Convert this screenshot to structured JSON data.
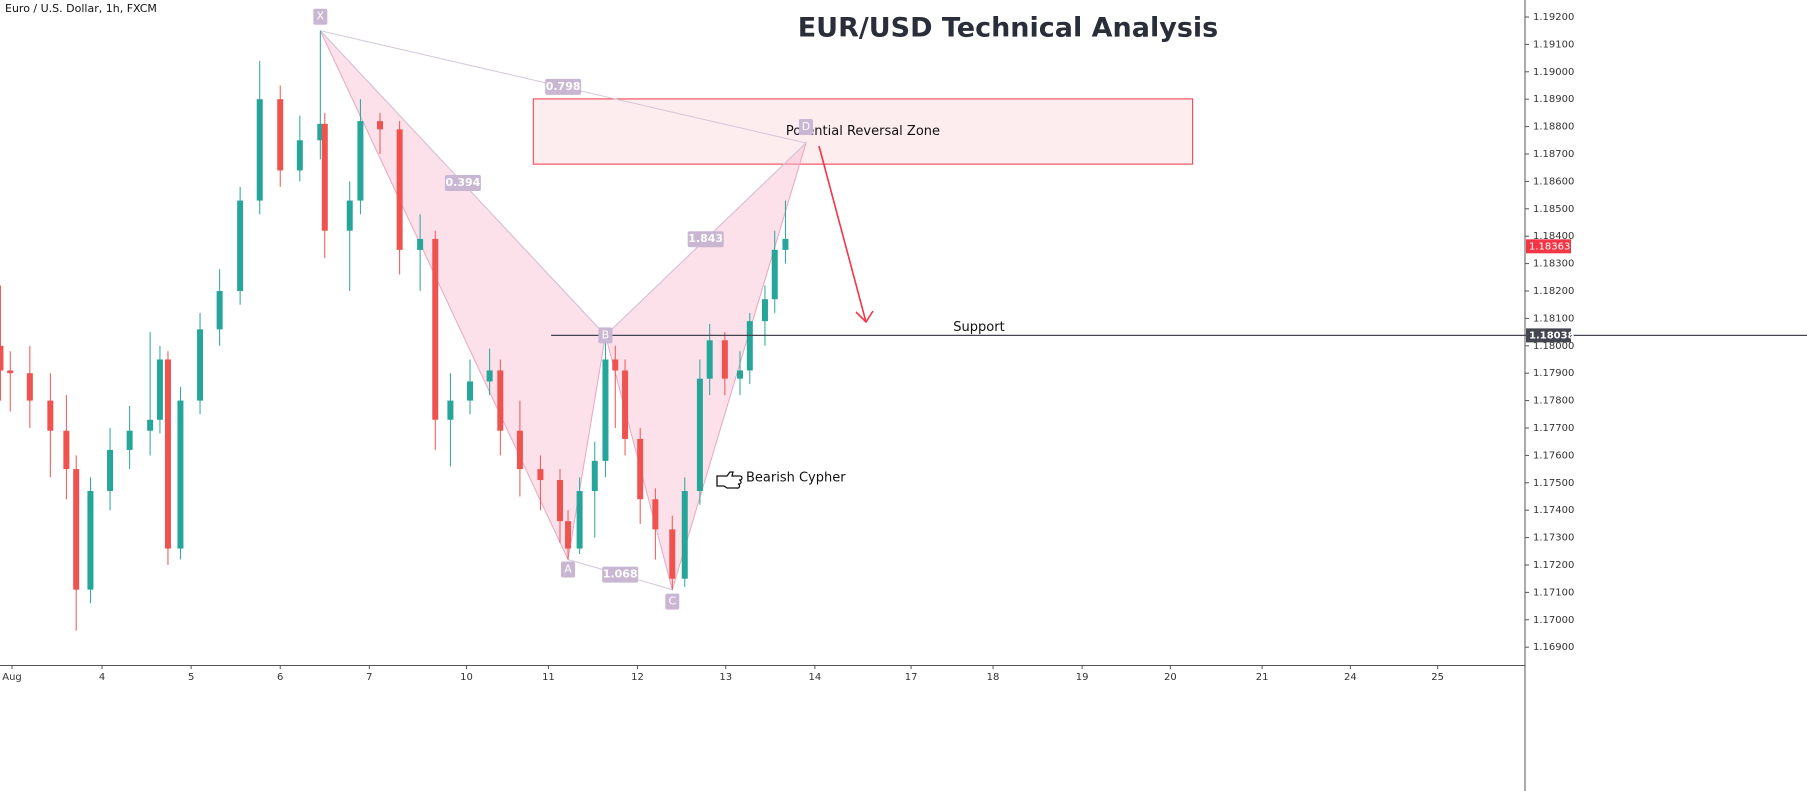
{
  "chart_data": {
    "type": "candlestick",
    "title": "EUR/USD Technical Analysis",
    "subtitle": "Euro / U.S. Dollar, 1h, FXCM",
    "x": [
      -0.13,
      -0.02,
      0.2,
      0.43,
      0.61,
      0.72,
      0.88,
      1.1,
      1.32,
      1.55,
      1.66,
      1.75,
      1.89,
      2.11,
      2.33,
      2.56,
      2.78,
      3.01,
      3.23,
      3.46,
      3.51,
      3.79,
      3.91,
      4.13,
      4.35,
      4.58,
      4.75,
      4.92,
      5.14,
      5.36,
      5.48,
      5.7,
      5.93,
      6.15,
      6.24,
      6.37,
      6.54,
      6.66,
      6.77,
      6.88,
      7.05,
      7.22,
      7.41,
      7.55,
      7.72,
      7.83,
      8.0,
      8.17,
      8.28,
      8.45,
      8.56,
      8.68
    ],
    "open": [
      1.18,
      1.1791,
      1.179,
      1.178,
      1.1769,
      1.1755,
      1.1711,
      1.1747,
      1.1762,
      1.1769,
      1.1773,
      1.1795,
      1.1726,
      1.178,
      1.1806,
      1.182,
      1.1853,
      1.189,
      1.1864,
      1.1875,
      1.1881,
      1.1842,
      1.1853,
      1.1882,
      1.1879,
      1.1835,
      1.1839,
      1.1773,
      1.178,
      1.1787,
      1.1791,
      1.1769,
      1.1755,
      1.1751,
      1.1736,
      1.1726,
      1.1747,
      1.1758,
      1.1795,
      1.1791,
      1.1766,
      1.1744,
      1.1733,
      1.1715,
      1.1747,
      1.1788,
      1.1802,
      1.1788,
      1.1791,
      1.1809,
      1.1817,
      1.1835
    ],
    "high": [
      1.1822,
      1.1798,
      1.18,
      1.179,
      1.1782,
      1.176,
      1.1752,
      1.177,
      1.1778,
      1.1805,
      1.18,
      1.1798,
      1.1785,
      1.1812,
      1.1828,
      1.1858,
      1.1904,
      1.1895,
      1.1884,
      1.1915,
      1.1885,
      1.186,
      1.189,
      1.1885,
      1.1882,
      1.1848,
      1.1842,
      1.179,
      1.1795,
      1.1799,
      1.1795,
      1.178,
      1.176,
      1.1755,
      1.174,
      1.1752,
      1.1765,
      1.1804,
      1.18,
      1.1795,
      1.177,
      1.1748,
      1.1738,
      1.1752,
      1.1795,
      1.1808,
      1.1805,
      1.1798,
      1.1812,
      1.1822,
      1.1842,
      1.1853
    ],
    "low": [
      1.178,
      1.1776,
      1.177,
      1.1752,
      1.1744,
      1.1696,
      1.1706,
      1.174,
      1.1755,
      1.176,
      1.1768,
      1.172,
      1.1722,
      1.1775,
      1.18,
      1.1815,
      1.1848,
      1.1858,
      1.186,
      1.1868,
      1.1832,
      1.182,
      1.1848,
      1.187,
      1.1826,
      1.182,
      1.1762,
      1.1756,
      1.1775,
      1.1782,
      1.176,
      1.1745,
      1.174,
      1.1728,
      1.1722,
      1.1724,
      1.173,
      1.1752,
      1.177,
      1.176,
      1.1735,
      1.1722,
      1.1711,
      1.1712,
      1.1742,
      1.1782,
      1.1782,
      1.1782,
      1.1786,
      1.18,
      1.1812,
      1.183
    ],
    "close": [
      1.1791,
      1.179,
      1.178,
      1.1769,
      1.1755,
      1.1711,
      1.1747,
      1.1762,
      1.1769,
      1.1773,
      1.1795,
      1.1726,
      1.178,
      1.1806,
      1.182,
      1.1853,
      1.189,
      1.1864,
      1.1875,
      1.1881,
      1.1842,
      1.1853,
      1.1882,
      1.1879,
      1.1835,
      1.1839,
      1.1773,
      1.178,
      1.1787,
      1.1791,
      1.1769,
      1.1755,
      1.1751,
      1.1736,
      1.1726,
      1.1747,
      1.1758,
      1.1795,
      1.1791,
      1.1766,
      1.1744,
      1.1733,
      1.1715,
      1.1747,
      1.1788,
      1.1802,
      1.1788,
      1.1791,
      1.1809,
      1.1817,
      1.1835,
      1.1839
    ],
    "up_color": "#26a69a",
    "down_color": "#ef5350",
    "xlim": [
      -0.135,
      16.98
    ],
    "xticks": [
      {
        "value": 0,
        "label": "Aug"
      },
      {
        "value": 1.01,
        "label": "4"
      },
      {
        "value": 2.01,
        "label": "5"
      },
      {
        "value": 3.01,
        "label": "6"
      },
      {
        "value": 4.01,
        "label": "7"
      },
      {
        "value": 5.1,
        "label": "10"
      },
      {
        "value": 6.02,
        "label": "11"
      },
      {
        "value": 7.02,
        "label": "12"
      },
      {
        "value": 8.01,
        "label": "13"
      },
      {
        "value": 9.01,
        "label": "14"
      },
      {
        "value": 10.09,
        "label": "17"
      },
      {
        "value": 11.01,
        "label": "18"
      },
      {
        "value": 12.01,
        "label": "19"
      },
      {
        "value": 13.0,
        "label": "20"
      },
      {
        "value": 14.03,
        "label": "21"
      },
      {
        "value": 15.02,
        "label": "24"
      },
      {
        "value": 16.0,
        "label": "25"
      }
    ],
    "ylim": [
      1.16835,
      1.19262
    ],
    "yticks": [
      {
        "value": 1.169,
        "label": "1.16900"
      },
      {
        "value": 1.17,
        "label": "1.17000"
      },
      {
        "value": 1.171,
        "label": "1.17100"
      },
      {
        "value": 1.172,
        "label": "1.17200"
      },
      {
        "value": 1.173,
        "label": "1.17300"
      },
      {
        "value": 1.174,
        "label": "1.17400"
      },
      {
        "value": 1.175,
        "label": "1.17500"
      },
      {
        "value": 1.176,
        "label": "1.17600"
      },
      {
        "value": 1.177,
        "label": "1.17700"
      },
      {
        "value": 1.178,
        "label": "1.17800"
      },
      {
        "value": 1.179,
        "label": "1.17900"
      },
      {
        "value": 1.18,
        "label": "1.18000"
      },
      {
        "value": 1.181,
        "label": "1.18100"
      },
      {
        "value": 1.182,
        "label": "1.18200"
      },
      {
        "value": 1.183,
        "label": "1.18300"
      },
      {
        "value": 1.184,
        "label": "1.18400"
      },
      {
        "value": 1.185,
        "label": "1.18500"
      },
      {
        "value": 1.186,
        "label": "1.18600"
      },
      {
        "value": 1.187,
        "label": "1.18700"
      },
      {
        "value": 1.188,
        "label": "1.18800"
      },
      {
        "value": 1.189,
        "label": "1.18900"
      },
      {
        "value": 1.19,
        "label": "1.19000"
      },
      {
        "value": 1.191,
        "label": "1.19100"
      },
      {
        "value": 1.192,
        "label": "1.19200"
      }
    ],
    "pattern": {
      "name": "Bearish Cypher",
      "color": "#f8bbd0",
      "points": [
        {
          "label": "X",
          "x": 3.46,
          "y": 1.1915
        },
        {
          "label": "A",
          "x": 6.24,
          "y": 1.1722
        },
        {
          "label": "B",
          "x": 6.66,
          "y": 1.18038
        },
        {
          "label": "C",
          "x": 7.41,
          "y": 1.1711
        },
        {
          "label": "D",
          "x": 8.91,
          "y": 1.1874
        }
      ],
      "ratios": [
        "0.798",
        "0.394",
        "1.068",
        "1.843"
      ]
    },
    "zone": {
      "label": "Potential Reversal Zone",
      "xlim": [
        5.85,
        13.25
      ],
      "ylim": [
        1.18663,
        1.18901
      ]
    },
    "support": {
      "label": "Support",
      "value": 1.18038,
      "x_start": 6.05
    },
    "last_price": 1.18363
  }
}
